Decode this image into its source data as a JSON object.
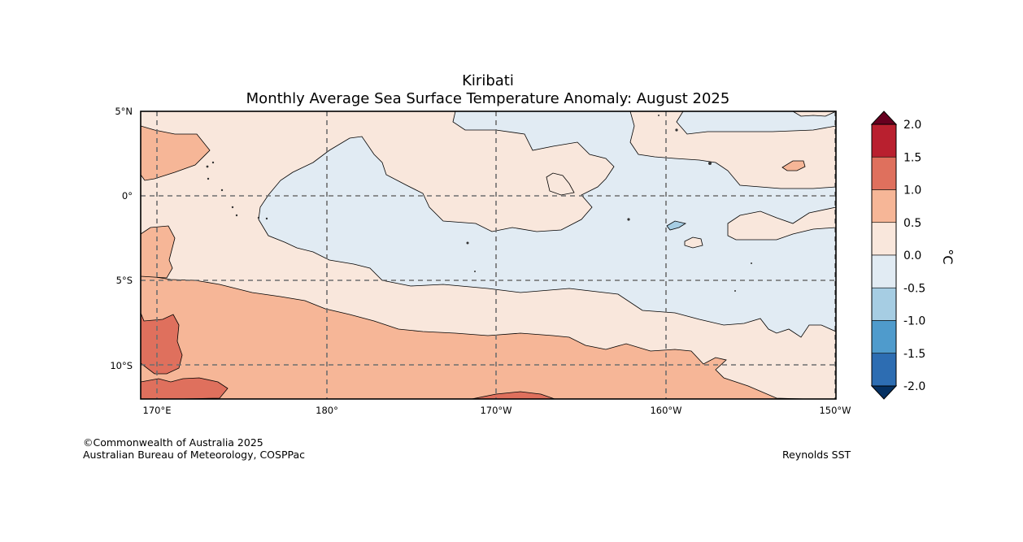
{
  "map": {
    "title": "Kiribati",
    "subtitle": "Monthly Average Sea Surface Temperature Anomaly: August 2025",
    "lat_labels": [
      "5°N",
      "0°",
      "5°S",
      "10°S"
    ],
    "lon_labels": [
      "170°E",
      "180°",
      "170°W",
      "160°W",
      "150°W"
    ],
    "region": {
      "lon_min": 169,
      "lon_max": 210,
      "lat_min": -12,
      "lat_max": 5
    },
    "shading_note": "Anomaly contours",
    "colors": {
      "neg_2_0_to_neg_1_5": "#2166ac",
      "neg_1_5_to_neg_1_0": "#4393c3",
      "neg_1_0_to_neg_0_5": "#92c5de",
      "neg_0_5_to_0_0": "#e1ebf3",
      "pos_0_0_to_0_5": "#f9e7dc",
      "pos_0_5_to_1_0": "#f6b697",
      "pos_1_0_to_1_5": "#df705d",
      "pos_1_5_to_2_0": "#b9202f",
      "over": "#67001f",
      "under": "#053061"
    }
  },
  "colorbar": {
    "tick_labels": [
      "2.0",
      "1.5",
      "1.0",
      "0.5",
      "0.0",
      "-0.5",
      "-1.0",
      "-1.5",
      "-2.0"
    ],
    "unit": "°C",
    "bins": [
      {
        "range": "1.5 to 2.0",
        "color": "#b9202f"
      },
      {
        "range": "1.0 to 1.5",
        "color": "#df705d"
      },
      {
        "range": "0.5 to 1.0",
        "color": "#f6b697"
      },
      {
        "range": "0.0 to 0.5",
        "color": "#f9e7dc"
      },
      {
        "range": "-0.5 to 0.0",
        "color": "#e1ebf3"
      },
      {
        "range": "-1.0 to -0.5",
        "color": "#a6cde3"
      },
      {
        "range": "-1.5 to -1.0",
        "color": "#4f9bcc"
      },
      {
        "range": "-2.0 to -1.5",
        "color": "#2d6db2"
      }
    ]
  },
  "footer": {
    "copyright": "©Commonwealth of Australia 2025",
    "agency": "Australian Bureau of Meteorology, COSPPac",
    "source": "Reynolds SST"
  }
}
